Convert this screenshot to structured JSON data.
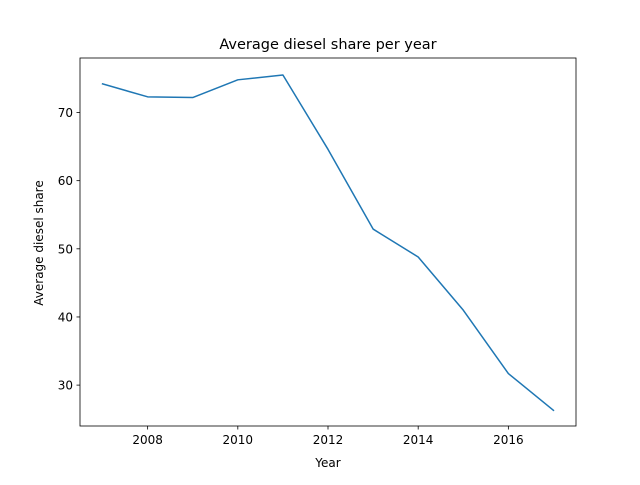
{
  "chart_data": {
    "type": "line",
    "title": "Average diesel share per year",
    "xlabel": "Year",
    "ylabel": "Average diesel share",
    "xlim": [
      2006.5,
      2017.5
    ],
    "ylim": [
      24.0,
      78.0
    ],
    "xticks": [
      2008,
      2010,
      2012,
      2014,
      2016
    ],
    "yticks": [
      30,
      40,
      50,
      60,
      70
    ],
    "grid": false,
    "series": [
      {
        "color": "#1f77b4",
        "x": [
          2007,
          2008,
          2009,
          2010,
          2011,
          2012,
          2013,
          2014,
          2015,
          2016,
          2017
        ],
        "y": [
          74.2,
          72.3,
          72.2,
          74.8,
          75.5,
          64.6,
          52.9,
          48.8,
          41.0,
          31.7,
          26.3
        ]
      }
    ]
  }
}
